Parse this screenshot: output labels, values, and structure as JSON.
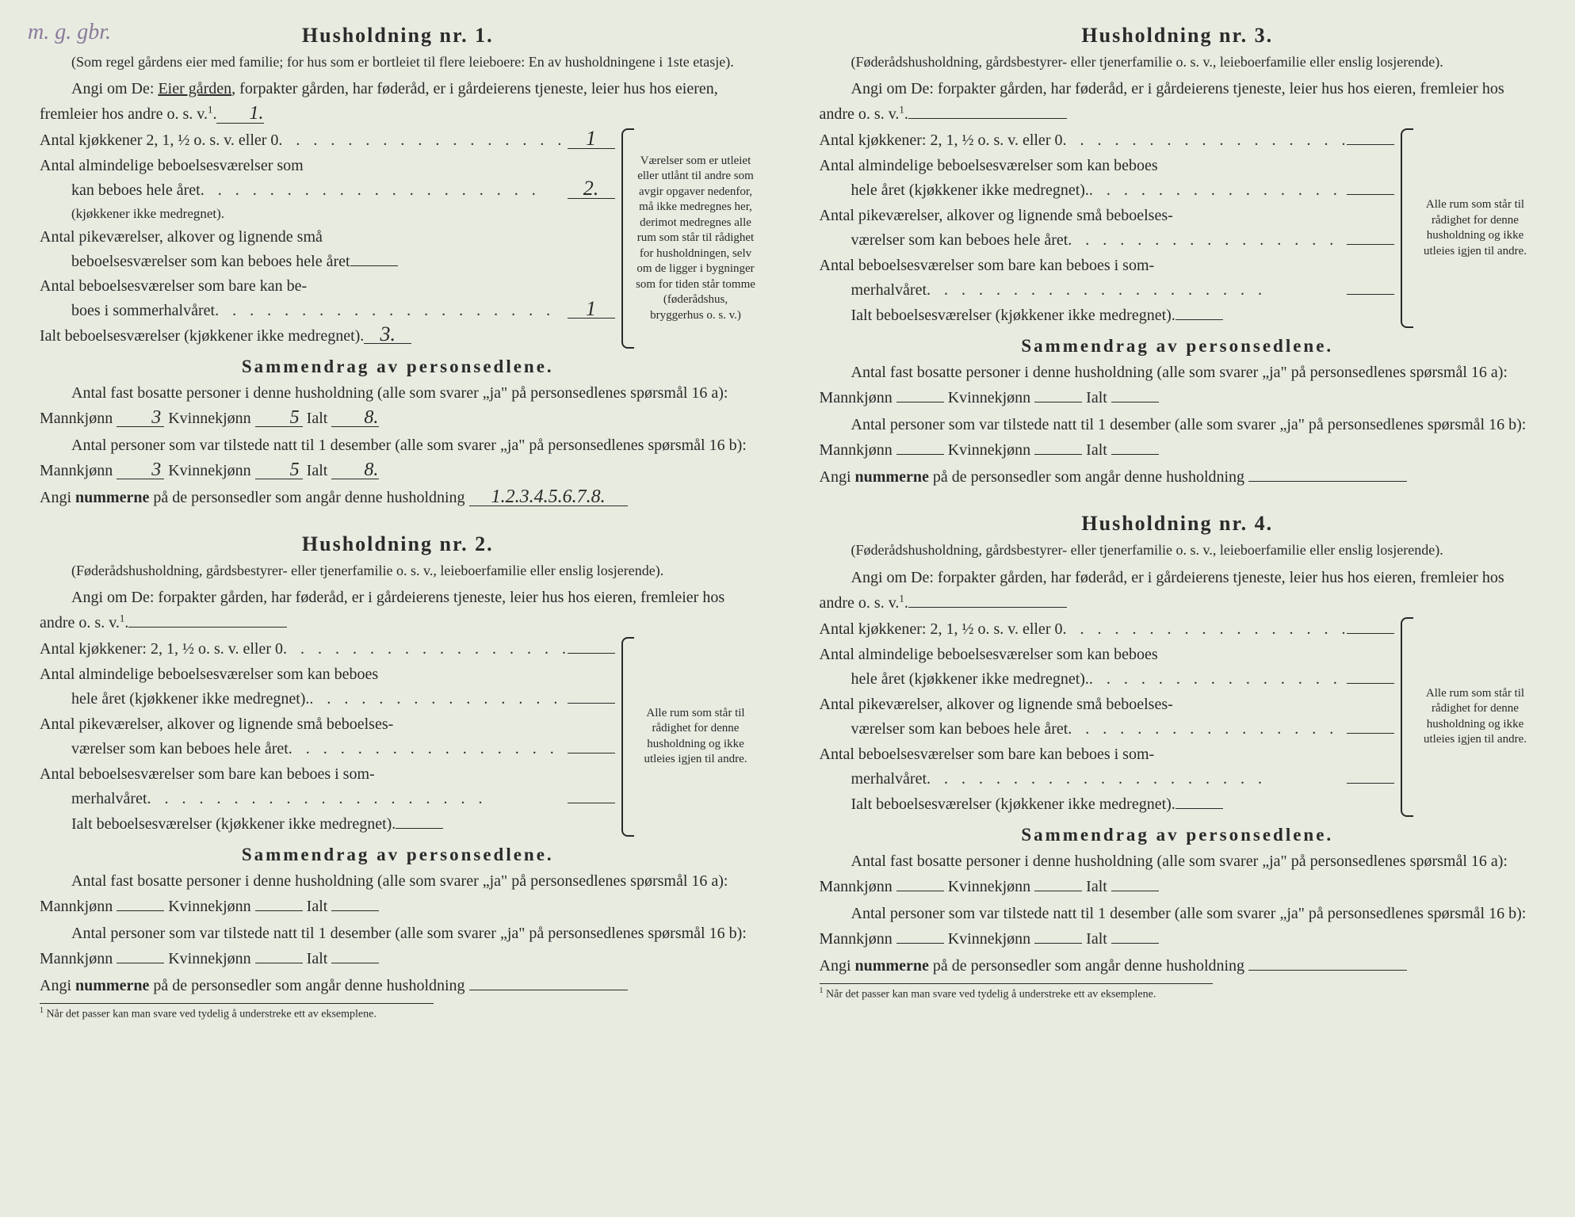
{
  "handwritten_top": "m. g. gbr.",
  "households": [
    {
      "title": "Husholdning nr. 1.",
      "subtitle": "(Som regel gårdens eier med familie; for hus som er bortleiet til flere leieboere: En av husholdningene i 1ste etasje).",
      "angi_line": "Angi om De: Eier gården, forpakter gården, har føderåd, er i gårdeierens tjeneste, leier hus hos eieren, fremleier hos andre o. s. v.",
      "angi_underlined": "Eier gården",
      "angi_value": "1.",
      "kjokken_label": "Antal kjøkkener 2, 1, ½ o. s. v. eller 0",
      "kjokken_val": "1",
      "alm_label": "Antal almindelige beboelsesværelser som kan beboes hele året",
      "alm_sub": "(kjøkkener ikke medregnet).",
      "alm_val": "2.",
      "pike_label": "Antal pikeværelser, alkover og lignende små beboelsesværelser som kan beboes hele året",
      "pike_val": "",
      "sommer_label": "Antal beboelsesværelser som bare kan beboes i sommerhalvåret",
      "sommer_val": "1",
      "ialt_label": "Ialt beboelsesværelser (kjøkkener ikke medregnet).",
      "ialt_val": "3.",
      "brace_note": "Værelser som er utleiet eller utlånt til andre som avgir opgaver nedenfor, må ikke medregnes her, derimot medregnes alle rum som står til rådighet for husholdningen, selv om de ligger i bygninger som for tiden står tomme (føderådshus, bryggerhus o. s. v.)",
      "summary_title": "Sammendrag av personsedlene.",
      "fast_line": "Antal fast bosatte personer i denne husholdning (alle som svarer „ja\" på personsedlenes spørsmål 16 a): Mannkjønn",
      "fast_m": "3",
      "fast_k": "5",
      "fast_i": "8.",
      "tilstede_line": "Antal personer som var tilstede natt til 1 desember (alle som svarer „ja\" på personsedlenes spørsmål 16 b): Mannkjønn",
      "til_m": "3",
      "til_k": "5",
      "til_i": "8.",
      "nummerne_label": "Angi nummerne på de personsedler som angår denne husholdning",
      "nummerne_val": "1.2.3.4.5.6.7.8."
    },
    {
      "title": "Husholdning nr. 2.",
      "subtitle": "(Føderådshusholdning, gårdsbestyrer- eller tjenerfamilie o. s. v., leieboerfamilie eller enslig losjerende).",
      "angi_line": "Angi om De: forpakter gården, har føderåd, er i gårdeierens tjeneste, leier hus hos eieren, fremleier hos andre o. s. v.",
      "angi_value": "",
      "kjokken_label": "Antal kjøkkener: 2, 1, ½ o. s. v. eller 0",
      "kjokken_val": "",
      "alm_label": "Antal almindelige beboelsesværelser som kan beboes hele året (kjøkkener ikke medregnet).",
      "alm_val": "",
      "pike_label": "Antal pikeværelser, alkover og lignende små beboelsesværelser som kan beboes hele året",
      "pike_val": "",
      "sommer_label": "Antal beboelsesværelser som bare kan beboes i sommerhalvåret",
      "sommer_val": "",
      "ialt_label": "Ialt beboelsesværelser (kjøkkener ikke medregnet).",
      "ialt_val": "",
      "brace_note": "Alle rum som står til rådighet for denne husholdning og ikke utleies igjen til andre.",
      "summary_title": "Sammendrag av personsedlene.",
      "fast_line": "Antal fast bosatte personer i denne husholdning (alle som svarer „ja\" på personsedlenes spørsmål 16 a): Mannkjønn",
      "fast_m": "",
      "fast_k": "",
      "fast_i": "",
      "tilstede_line": "Antal personer som var tilstede natt til 1 desember (alle som svarer „ja\" på personsedlenes spørsmål 16 b): Mannkjønn",
      "til_m": "",
      "til_k": "",
      "til_i": "",
      "nummerne_label": "Angi nummerne på de personsedler som angår denne husholdning",
      "nummerne_val": "",
      "footnote": "Når det passer kan man svare ved tydelig å understreke ett av eksemplene."
    },
    {
      "title": "Husholdning nr. 3.",
      "subtitle": "(Føderådshusholdning, gårdsbestyrer- eller tjenerfamilie o. s. v., leieboerfamilie eller enslig losjerende).",
      "angi_line": "Angi om De: forpakter gården, har føderåd, er i gårdeierens tjeneste, leier hus hos eieren, fremleier hos andre o. s. v.",
      "angi_value": "",
      "kjokken_label": "Antal kjøkkener: 2, 1, ½ o. s. v. eller 0",
      "kjokken_val": "",
      "alm_label": "Antal almindelige beboelsesværelser som kan beboes hele året (kjøkkener ikke medregnet).",
      "alm_val": "",
      "pike_label": "Antal pikeværelser, alkover og lignende små beboelsesværelser som kan beboes hele året",
      "pike_val": "",
      "sommer_label": "Antal beboelsesværelser som bare kan beboes i sommerhalvåret",
      "sommer_val": "",
      "ialt_label": "Ialt beboelsesværelser (kjøkkener ikke medregnet).",
      "ialt_val": "",
      "brace_note": "Alle rum som står til rådighet for denne husholdning og ikke utleies igjen til andre.",
      "summary_title": "Sammendrag av personsedlene.",
      "fast_line": "Antal fast bosatte personer i denne husholdning (alle som svarer „ja\" på personsedlenes spørsmål 16 a): Mannkjønn",
      "fast_m": "",
      "fast_k": "",
      "fast_i": "",
      "tilstede_line": "Antal personer som var tilstede natt til 1 desember (alle som svarer „ja\" på personsedlenes spørsmål 16 b): Mannkjønn",
      "til_m": "",
      "til_k": "",
      "til_i": "",
      "nummerne_label": "Angi nummerne på de personsedler som angår denne husholdning",
      "nummerne_val": ""
    },
    {
      "title": "Husholdning nr. 4.",
      "subtitle": "(Føderådshusholdning, gårdsbestyrer- eller tjenerfamilie o. s. v., leieboerfamilie eller enslig losjerende).",
      "angi_line": "Angi om De: forpakter gården, har føderåd, er i gårdeierens tjeneste, leier hus hos eieren, fremleier hos andre o. s. v.",
      "angi_value": "",
      "kjokken_label": "Antal kjøkkener: 2, 1, ½ o. s. v. eller 0",
      "kjokken_val": "",
      "alm_label": "Antal almindelige beboelsesværelser som kan beboes hele året (kjøkkener ikke medregnet).",
      "alm_val": "",
      "pike_label": "Antal pikeværelser, alkover og lignende små beboelsesværelser som kan beboes hele året",
      "pike_val": "",
      "sommer_label": "Antal beboelsesværelser som bare kan beboes i sommerhalvåret",
      "sommer_val": "",
      "ialt_label": "Ialt beboelsesværelser (kjøkkener ikke medregnet).",
      "ialt_val": "",
      "brace_note": "Alle rum som står til rådighet for denne husholdning og ikke utleies igjen til andre.",
      "summary_title": "Sammendrag av personsedlene.",
      "fast_line": "Antal fast bosatte personer i denne husholdning (alle som svarer „ja\" på personsedlenes spørsmål 16 a): Mannkjønn",
      "fast_m": "",
      "fast_k": "",
      "fast_i": "",
      "tilstede_line": "Antal personer som var tilstede natt til 1 desember (alle som svarer „ja\" på personsedlenes spørsmål 16 b): Mannkjønn",
      "til_m": "",
      "til_k": "",
      "til_i": "",
      "nummerne_label": "Angi nummerne på de personsedler som angår denne husholdning",
      "nummerne_val": "",
      "footnote": "Når det passer kan man svare ved tydelig å understreke ett av eksemplene."
    }
  ],
  "labels": {
    "kvinne": "Kvinnekjønn",
    "ialt": "Ialt"
  }
}
